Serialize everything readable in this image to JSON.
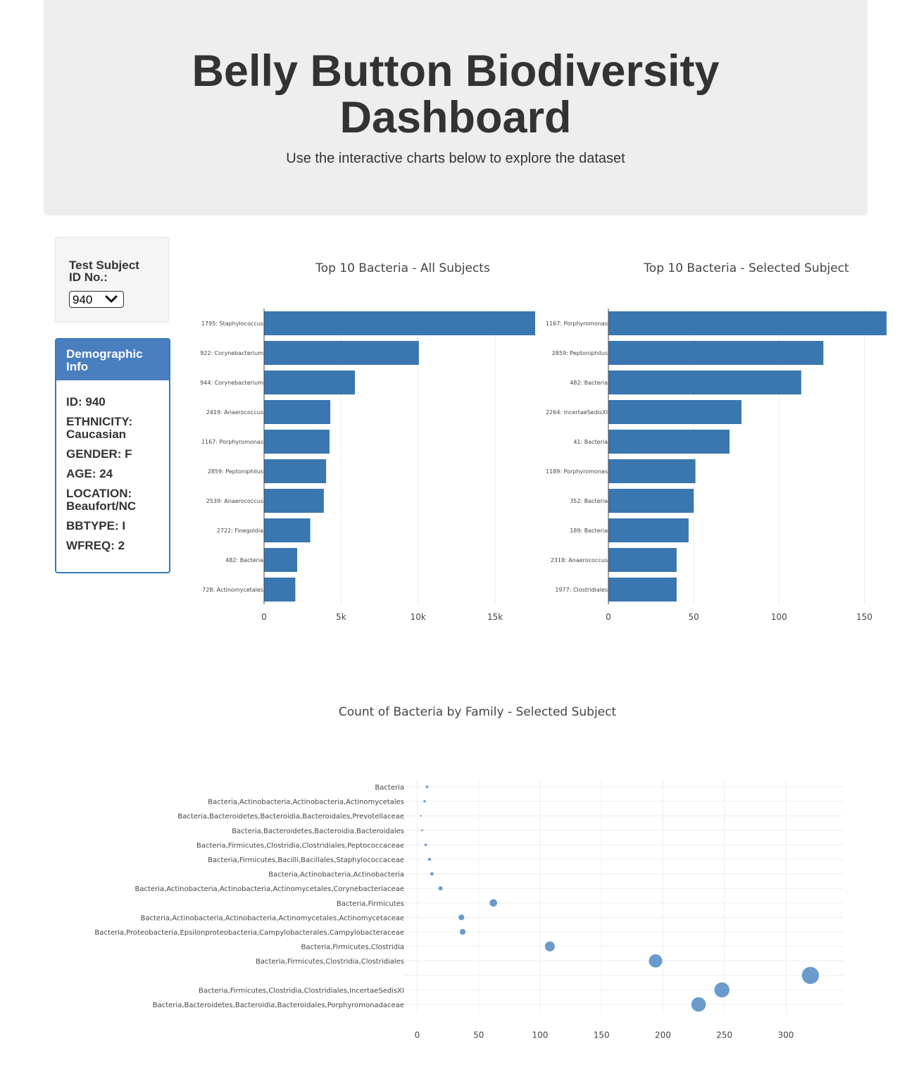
{
  "header": {
    "title_line1": "Belly Button Biodiversity",
    "title_line2": "Dashboard",
    "subtitle": "Use the interactive charts below to explore the dataset"
  },
  "selector": {
    "label_line1": "Test Subject",
    "label_line2": "ID No.:",
    "selected": "940"
  },
  "demographics": {
    "title_line1": "Demographic",
    "title_line2": "Info",
    "lines": [
      "ID: 940",
      "ETHNICITY:",
      "Caucasian",
      "GENDER: F",
      "AGE: 24",
      "LOCATION:",
      "Beaufort/NC",
      "BBTYPE: I",
      "WFREQ: 2"
    ]
  },
  "colors": {
    "bar": "#3a76b0",
    "bubble": "#5b8fc7",
    "grid": "#eeeeee"
  },
  "chart_data": [
    {
      "type": "bar",
      "orientation": "horizontal",
      "title": "Top 10 Bacteria - All Subjects",
      "categories": [
        "1795: Staphylococcus",
        "922: Corynebacterium",
        "944: Corynebacterium",
        "2419: Anaerococcus",
        "1167: Porphyromonas",
        "2859: Peptoniphilus",
        "2539: Anaerococcus",
        "2722: Finegoldia",
        "482: Bacteria",
        "728: Actinomycetales"
      ],
      "values": [
        17600,
        10050,
        5900,
        4300,
        4250,
        4030,
        3880,
        3000,
        2150,
        2030
      ],
      "xlim": [
        0,
        17600
      ],
      "xticks": [
        0,
        5000,
        10000,
        15000
      ],
      "xtick_labels": [
        "0",
        "5k",
        "10k",
        "15k"
      ]
    },
    {
      "type": "bar",
      "orientation": "horizontal",
      "title": "Top 10 Bacteria - Selected Subject",
      "categories": [
        "1167: Porphyromonas",
        "2859: Peptoniphilus",
        "482: Bacteria",
        "2264: IncertaeSedisXI",
        "41: Bacteria",
        "1189: Porphyromonas",
        "352: Bacteria",
        "189: Bacteria",
        "2318: Anaerococcus",
        "1977: Clostridiales"
      ],
      "values": [
        163,
        126,
        113,
        78,
        71,
        51,
        50,
        47,
        40,
        40
      ],
      "xlim": [
        0,
        163
      ],
      "xticks": [
        0,
        50,
        100,
        150
      ],
      "xtick_labels": [
        "0",
        "50",
        "100",
        "150"
      ]
    },
    {
      "type": "scatter",
      "title": "Count of Bacteria by Family - Selected Subject",
      "categories": [
        "Bacteria",
        "Bacteria,Actinobacteria,Actinobacteria,Actinomycetales",
        "Bacteria,Bacteroidetes,Bacteroidia,Bacteroidales,Prevotellaceae",
        "Bacteria,Bacteroidetes,Bacteroidia,Bacteroidales",
        "Bacteria,Firmicutes,Clostridia,Clostridiales,Peptococcaceae",
        "Bacteria,Firmicutes,Bacilli,Bacillales,Staphylococcaceae",
        "Bacteria,Actinobacteria,Actinobacteria",
        "Bacteria,Actinobacteria,Actinobacteria,Actinomycetales,Corynebacteriaceae",
        "Bacteria,Firmicutes",
        "Bacteria,Actinobacteria,Actinobacteria,Actinomycetales,Actinomycetaceae",
        "Bacteria,Proteobacteria,Epsilonproteobacteria,Campylobacterales,Campylobacteraceae",
        "Bacteria,Firmicutes,Clostridia",
        "Bacteria,Firmicutes,Clostridia,Clostridiales",
        "",
        "Bacteria,Firmicutes,Clostridia,Clostridiales,IncertaeSedisXI",
        "Bacteria,Bacteroidetes,Bacteroidia,Bacteroidales,Porphyromonadaceae"
      ],
      "x": [
        8,
        6,
        3,
        4,
        7,
        10,
        12,
        19,
        62,
        36,
        37,
        108,
        194,
        320,
        248,
        229
      ],
      "xlim": [
        -10,
        347
      ],
      "xticks": [
        0,
        50,
        100,
        150,
        200,
        250,
        300
      ],
      "xtick_labels": [
        "0",
        "50",
        "100",
        "150",
        "200",
        "250",
        "300"
      ]
    }
  ]
}
